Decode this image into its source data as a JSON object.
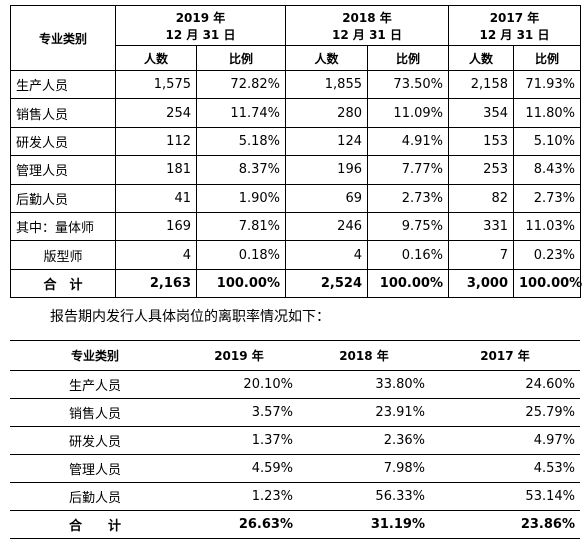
{
  "table1": {
    "header": {
      "category": "专业类别",
      "years": [
        [
          "2019 年",
          "12 月 31 日"
        ],
        [
          "2018 年",
          "12 月 31 日"
        ],
        [
          "2017 年",
          "12 月 31 日"
        ]
      ],
      "sub": [
        "人数",
        "比例",
        "人数",
        "比例",
        "人数",
        "比例"
      ]
    },
    "rows": [
      [
        "生产人员",
        "1,575",
        "72.82%",
        "1,855",
        "73.50%",
        "2,158",
        "71.93%"
      ],
      [
        "销售人员",
        "254",
        "11.74%",
        "280",
        "11.09%",
        "354",
        "11.80%"
      ],
      [
        "研发人员",
        "112",
        "5.18%",
        "124",
        "4.91%",
        "153",
        "5.10%"
      ],
      [
        "管理人员",
        "181",
        "8.37%",
        "196",
        "7.77%",
        "253",
        "8.43%"
      ],
      [
        "后勤人员",
        "41",
        "1.90%",
        "69",
        "2.73%",
        "82",
        "2.73%"
      ],
      [
        "其中：量体师",
        "169",
        "7.81%",
        "246",
        "9.75%",
        "331",
        "11.03%"
      ],
      [
        "版型师",
        "4",
        "0.18%",
        "4",
        "0.16%",
        "7",
        "0.23%"
      ],
      [
        "合　计",
        "2,163",
        "100.00%",
        "2,524",
        "100.00%",
        "3,000",
        "100.00%"
      ]
    ]
  },
  "paragraph": "报告期内发行人具体岗位的离职率情况如下：",
  "table2": {
    "header": [
      "专业类别",
      "2019 年",
      "2018 年",
      "2017 年"
    ],
    "rows": [
      [
        "生产人员",
        "20.10%",
        "33.80%",
        "24.60%"
      ],
      [
        "销售人员",
        "3.57%",
        "23.91%",
        "25.79%"
      ],
      [
        "研发人员",
        "1.37%",
        "2.36%",
        "4.97%"
      ],
      [
        "管理人员",
        "4.59%",
        "7.98%",
        "4.53%"
      ],
      [
        "后勤人员",
        "1.23%",
        "56.33%",
        "53.14%"
      ],
      [
        "合　　计",
        "26.63%",
        "31.19%",
        "23.86%"
      ]
    ]
  }
}
